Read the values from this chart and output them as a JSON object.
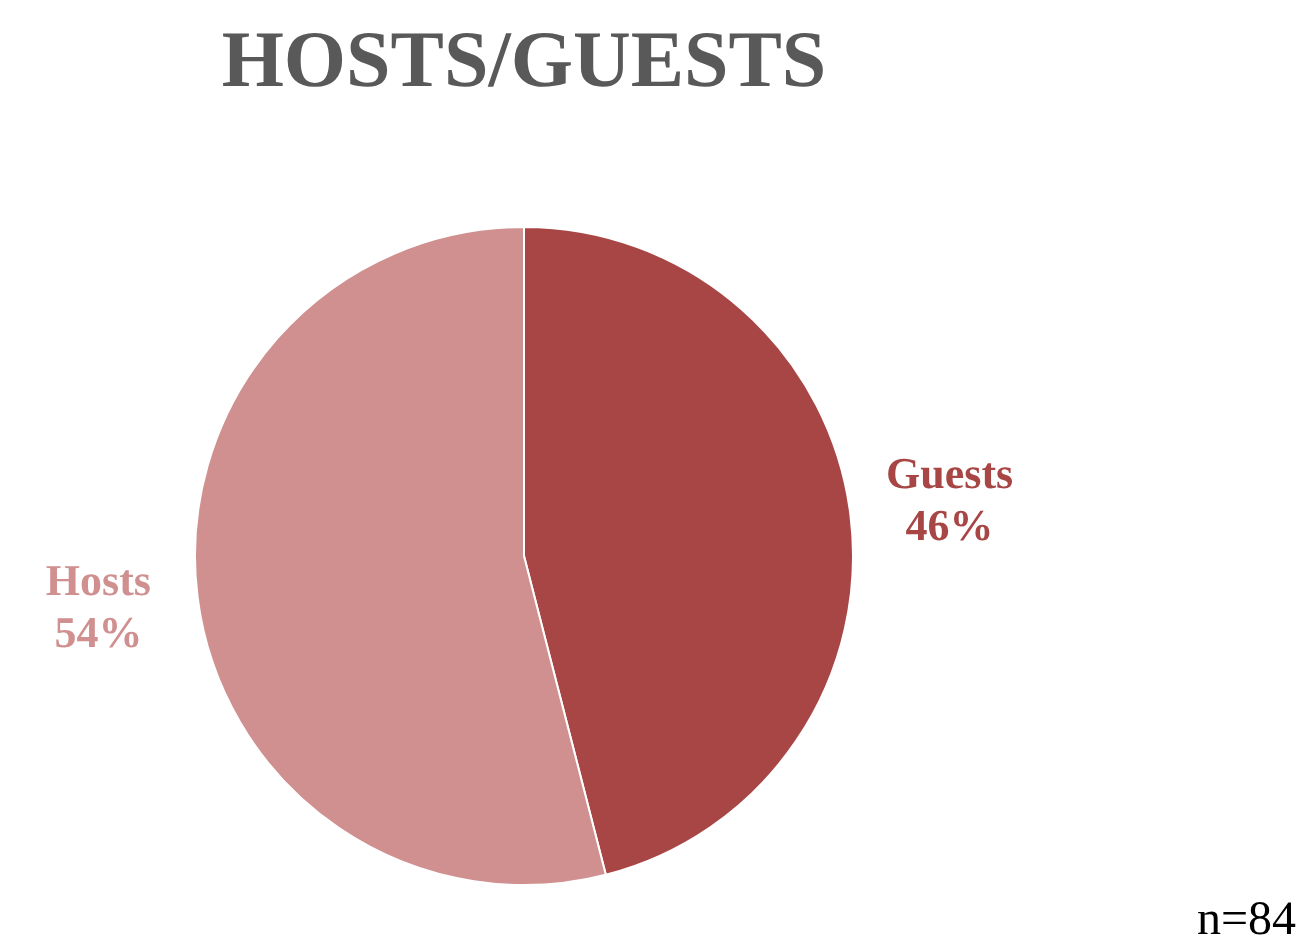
{
  "chart_data": {
    "type": "pie",
    "title": "HOSTS/GUESTS",
    "categories": [
      "Guests",
      "Hosts"
    ],
    "values": [
      46,
      54
    ],
    "colors": [
      "#a84646",
      "#d09090"
    ],
    "value_labels": [
      "46%",
      "54%"
    ],
    "legend": false,
    "annotations": [
      "n=84"
    ]
  }
}
